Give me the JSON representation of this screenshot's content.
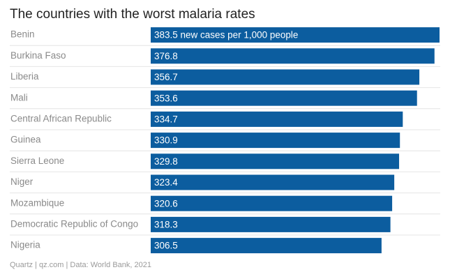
{
  "chart_data": {
    "type": "bar",
    "orientation": "horizontal",
    "title": "The countries with the worst malaria rates",
    "categories": [
      "Benin",
      "Burkina Faso",
      "Liberia",
      "Mali",
      "Central African Republic",
      "Guinea",
      "Sierra Leone",
      "Niger",
      "Mozambique",
      "Democratic Republic of Congo",
      "Nigeria"
    ],
    "values": [
      383.5,
      376.8,
      356.7,
      353.6,
      334.7,
      330.9,
      329.8,
      323.4,
      320.6,
      318.3,
      306.5
    ],
    "value_labels": [
      "383.5 new cases per 1,000 people",
      "376.8",
      "356.7",
      "353.6",
      "334.7",
      "330.9",
      "329.8",
      "323.4",
      "320.6",
      "318.3",
      "306.5"
    ],
    "xlim": [
      0,
      383.5
    ],
    "xlabel": "",
    "ylabel": "",
    "bar_color": "#0c5d9f",
    "label_color": "#ffffff",
    "category_color": "#8a8a8a",
    "source": "Quartz | qz.com | Data: World Bank, 2021"
  }
}
